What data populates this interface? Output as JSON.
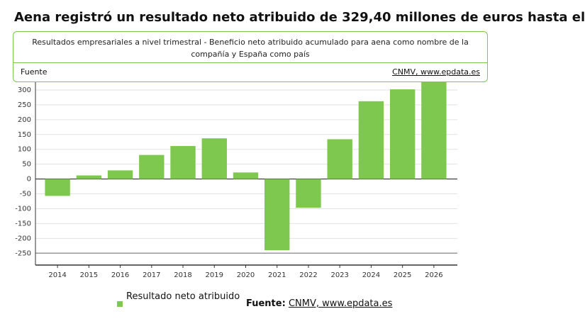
{
  "chart_data": {
    "type": "bar",
    "title": "Aena registró un resultado neto atribuido de 329,40 millones de euros hasta el",
    "subtitle": "Resultados empresariales a nivel trimestral - Beneficio neto atribuido acumulado para aena como nombre de la compañía y España como país",
    "source_label": "Fuente",
    "source": "CNMV, www.epdata.es",
    "footer_label": "Fuente:",
    "categories": [
      "2014",
      "2015",
      "2016",
      "2017",
      "2018",
      "2019",
      "2020",
      "2021",
      "2022",
      "2023",
      "2024",
      "2025",
      "2026"
    ],
    "series": [
      {
        "name": "Resultado neto atribuido",
        "color": "#7ec850",
        "values": [
          -57,
          12,
          29,
          81,
          111,
          137,
          22,
          -240,
          -97,
          134,
          262,
          302,
          329.4
        ]
      }
    ],
    "ylim": [
      -290,
      350
    ],
    "yticks": [
      -250,
      -200,
      -150,
      -100,
      -50,
      0,
      50,
      100,
      150,
      200,
      250,
      300
    ],
    "grid": true
  }
}
